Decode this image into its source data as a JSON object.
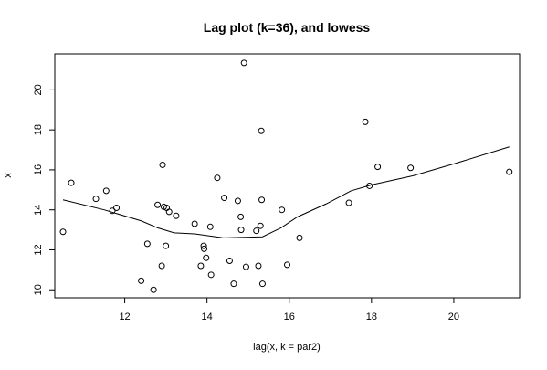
{
  "chart_data": {
    "type": "scatter",
    "title": "Lag plot (k=36), and lowess",
    "xlabel": "lag(x, k = par2)",
    "ylabel": "x",
    "xlim": [
      10.3,
      21.6
    ],
    "ylim": [
      9.6,
      21.8
    ],
    "x_ticks": [
      12,
      14,
      16,
      18,
      20
    ],
    "y_ticks": [
      10,
      12,
      14,
      16,
      18,
      20
    ],
    "grid": false,
    "series": [
      {
        "kind": "points",
        "points": [
          [
            10.5,
            12.9
          ],
          [
            10.7,
            15.35
          ],
          [
            11.3,
            14.55
          ],
          [
            11.55,
            14.95
          ],
          [
            11.7,
            13.95
          ],
          [
            11.8,
            14.1
          ],
          [
            12.4,
            10.45
          ],
          [
            12.55,
            12.3
          ],
          [
            12.7,
            10.0
          ],
          [
            12.8,
            14.25
          ],
          [
            12.9,
            11.2
          ],
          [
            12.92,
            16.25
          ],
          [
            12.95,
            14.15
          ],
          [
            13.0,
            12.2
          ],
          [
            13.02,
            14.1
          ],
          [
            13.08,
            13.9
          ],
          [
            13.25,
            13.7
          ],
          [
            13.7,
            13.3
          ],
          [
            13.85,
            11.2
          ],
          [
            13.92,
            12.2
          ],
          [
            13.93,
            12.05
          ],
          [
            13.98,
            11.6
          ],
          [
            14.08,
            13.15
          ],
          [
            14.1,
            10.75
          ],
          [
            14.25,
            15.6
          ],
          [
            14.42,
            14.6
          ],
          [
            14.55,
            11.45
          ],
          [
            14.65,
            10.3
          ],
          [
            14.75,
            14.45
          ],
          [
            14.82,
            13.65
          ],
          [
            14.83,
            13.0
          ],
          [
            14.9,
            21.35
          ],
          [
            14.95,
            11.15
          ],
          [
            15.2,
            12.95
          ],
          [
            15.25,
            11.2
          ],
          [
            15.3,
            13.2
          ],
          [
            15.32,
            17.95
          ],
          [
            15.33,
            14.5
          ],
          [
            15.35,
            10.3
          ],
          [
            15.82,
            14.0
          ],
          [
            15.95,
            11.25
          ],
          [
            16.25,
            12.6
          ],
          [
            17.45,
            14.35
          ],
          [
            17.85,
            18.4
          ],
          [
            17.95,
            15.2
          ],
          [
            18.15,
            16.15
          ],
          [
            18.95,
            16.1
          ],
          [
            21.35,
            15.9
          ]
        ]
      },
      {
        "kind": "lowess-line",
        "points": [
          [
            10.5,
            14.5
          ],
          [
            11.5,
            14.0
          ],
          [
            12.4,
            13.45
          ],
          [
            12.8,
            13.1
          ],
          [
            13.2,
            12.85
          ],
          [
            13.7,
            12.8
          ],
          [
            14.4,
            12.6
          ],
          [
            15.35,
            12.65
          ],
          [
            15.8,
            13.1
          ],
          [
            16.2,
            13.65
          ],
          [
            16.9,
            14.3
          ],
          [
            17.5,
            14.95
          ],
          [
            18.0,
            15.25
          ],
          [
            19.0,
            15.7
          ],
          [
            20.0,
            16.3
          ],
          [
            21.35,
            17.15
          ]
        ]
      }
    ]
  }
}
